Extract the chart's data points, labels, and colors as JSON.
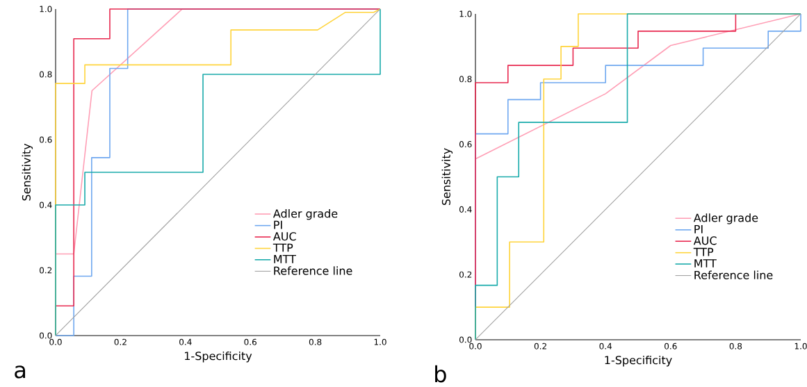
{
  "chart_data": [
    {
      "type": "line",
      "xlabel": "1-Specificity",
      "ylabel": "Sensitivity",
      "annotations": [
        "a"
      ],
      "xlim": [
        0,
        1
      ],
      "ylim": [
        0,
        1
      ],
      "legend": "bottom right",
      "grid": false,
      "marker": "none",
      "line_style": "solid",
      "xticks": [
        {
          "value": 0,
          "label": "0.0"
        },
        {
          "value": 0.2,
          "label": "0.2"
        },
        {
          "value": 0.4,
          "label": "0.4"
        },
        {
          "value": 0.6,
          "label": "0.6"
        },
        {
          "value": 0.8,
          "label": "0.8"
        },
        {
          "value": 1,
          "label": "1.0"
        }
      ],
      "yticks": [
        {
          "value": 0,
          "label": "0.0"
        },
        {
          "value": 0.2,
          "label": "0.2"
        },
        {
          "value": 0.4,
          "label": "0.4"
        },
        {
          "value": 0.6,
          "label": "0.6"
        },
        {
          "value": 0.8,
          "label": "0.8"
        },
        {
          "value": 1,
          "label": "1.0"
        }
      ],
      "series": [
        {
          "name": "Adler grade",
          "color": "#ff9eb5",
          "x": [
            0,
            0,
            0.056,
            0.112,
            0.39,
            1
          ],
          "values": [
            0,
            0.25,
            0.25,
            0.75,
            1,
            1
          ]
        },
        {
          "name": "PI",
          "color": "#6fa8f0",
          "x": [
            0,
            0.056,
            0.056,
            0.111,
            0.111,
            0.167,
            0.167,
            0.222,
            0.222,
            1
          ],
          "values": [
            0,
            0,
            0.182,
            0.182,
            0.545,
            0.545,
            0.818,
            0.818,
            1,
            1
          ]
        },
        {
          "name": "AUC",
          "color": "#e8284f",
          "x": [
            0,
            0,
            0.056,
            0.056,
            0.167,
            0.167,
            1
          ],
          "values": [
            0,
            0.091,
            0.091,
            0.909,
            0.909,
            1,
            1
          ]
        },
        {
          "name": "TTP",
          "color": "#ffd43b",
          "x": [
            0,
            0,
            0.09,
            0.09,
            0.54,
            0.54,
            0.807,
            0.893,
            0.98,
            1
          ],
          "values": [
            0,
            0.772,
            0.772,
            0.829,
            0.829,
            0.936,
            0.936,
            0.99,
            0.99,
            1
          ]
        },
        {
          "name": "MTT",
          "color": "#1aabab",
          "x": [
            0,
            0,
            0.09,
            0.09,
            0.454,
            0.454,
            1,
            1
          ],
          "values": [
            0,
            0.4,
            0.4,
            0.5,
            0.5,
            0.8,
            0.8,
            1
          ]
        },
        {
          "name": "Reference line",
          "color": "#a0a0a0",
          "x": [
            0,
            1
          ],
          "values": [
            0,
            1
          ]
        }
      ]
    },
    {
      "type": "line",
      "xlabel": "1-Specificity",
      "ylabel": "Sensitivity",
      "annotations": [
        "b"
      ],
      "xlim": [
        0,
        1
      ],
      "ylim": [
        0,
        1
      ],
      "legend": "bottom right",
      "grid": false,
      "marker": "none",
      "line_style": "solid",
      "xticks": [
        {
          "value": 0,
          "label": "0.0"
        },
        {
          "value": 0.2,
          "label": "0.2"
        },
        {
          "value": 0.4,
          "label": "0.4"
        },
        {
          "value": 0.6,
          "label": "0.6"
        },
        {
          "value": 0.8,
          "label": "0.8"
        },
        {
          "value": 1,
          "label": "1.0"
        }
      ],
      "yticks": [
        {
          "value": 0,
          "label": "0.0"
        },
        {
          "value": 0.2,
          "label": "0.2"
        },
        {
          "value": 0.4,
          "label": "0.4"
        },
        {
          "value": 0.6,
          "label": "0.6"
        },
        {
          "value": 0.8,
          "label": "0.8"
        },
        {
          "value": 1,
          "label": "1.0"
        }
      ],
      "series": [
        {
          "name": "Adler grade",
          "color": "#ff9eb5",
          "x": [
            0,
            0,
            0.4,
            0.6,
            1
          ],
          "values": [
            0,
            0.555,
            0.755,
            0.903,
            1
          ]
        },
        {
          "name": "PI",
          "color": "#6fa8f0",
          "x": [
            0,
            0,
            0.1,
            0.1,
            0.2,
            0.2,
            0.4,
            0.4,
            0.7,
            0.7,
            0.9,
            0.9,
            1,
            1
          ],
          "values": [
            0,
            0.632,
            0.632,
            0.737,
            0.737,
            0.789,
            0.789,
            0.842,
            0.842,
            0.895,
            0.895,
            0.947,
            0.947,
            1
          ]
        },
        {
          "name": "AUC",
          "color": "#e8284f",
          "x": [
            0,
            0,
            0.1,
            0.1,
            0.3,
            0.3,
            0.5,
            0.5,
            0.8,
            0.8,
            1
          ],
          "values": [
            0,
            0.789,
            0.789,
            0.842,
            0.842,
            0.895,
            0.895,
            0.947,
            0.947,
            1,
            1
          ]
        },
        {
          "name": "TTP",
          "color": "#ffd43b",
          "x": [
            0,
            0,
            0.105,
            0.105,
            0.21,
            0.21,
            0.263,
            0.263,
            0.316,
            0.316,
            1
          ],
          "values": [
            0,
            0.1,
            0.1,
            0.3,
            0.3,
            0.8,
            0.8,
            0.9,
            0.9,
            1,
            1
          ]
        },
        {
          "name": "MTT",
          "color": "#1aabab",
          "x": [
            0,
            0,
            0.067,
            0.067,
            0.133,
            0.133,
            0.467,
            0.467,
            1
          ],
          "values": [
            0,
            0.167,
            0.167,
            0.5,
            0.5,
            0.667,
            0.667,
            1,
            1
          ]
        },
        {
          "name": "Reference line",
          "color": "#a0a0a0",
          "x": [
            0,
            1
          ],
          "values": [
            0,
            1
          ]
        }
      ]
    }
  ]
}
